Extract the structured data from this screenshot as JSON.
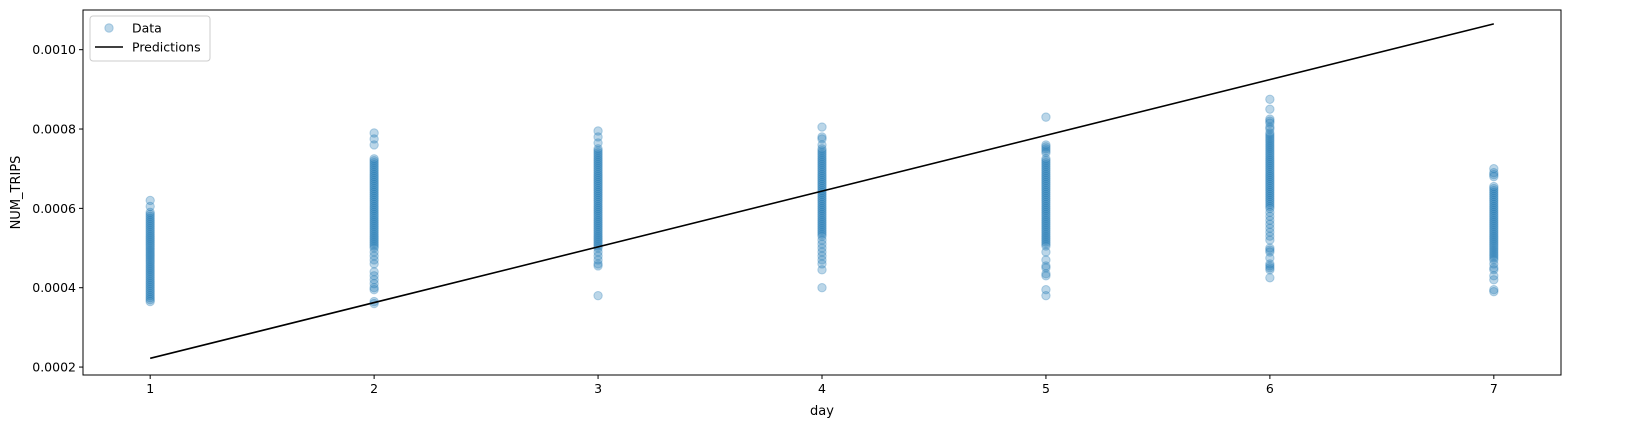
{
  "chart_data": {
    "type": "scatter",
    "xlabel": "day",
    "ylabel": "NUM_TRIPS",
    "xlim": [
      0.7,
      7.3
    ],
    "ylim": [
      0.00018,
      0.0011
    ],
    "xticks": [
      "1",
      "2",
      "3",
      "4",
      "5",
      "6",
      "7"
    ],
    "yticks": [
      "0.0002",
      "0.0004",
      "0.0006",
      "0.0008",
      "0.0010"
    ],
    "grid": false,
    "legend": {
      "placement": "top-left",
      "entries": [
        {
          "label": "Data",
          "marker": "circle",
          "color": "#1f77b4"
        },
        {
          "label": "Predictions",
          "marker": "line",
          "color": "#000000"
        }
      ]
    },
    "series": [
      {
        "name": "Data",
        "kind": "scatter",
        "color": "#1f77b4",
        "alpha": 0.3,
        "points_by_day": [
          {
            "x": 1,
            "y": [
              0.00062,
              0.000605,
              0.00059,
              0.000585,
              0.00058,
              0.000575,
              0.00057,
              0.000565,
              0.00056,
              0.000555,
              0.00055,
              0.000545,
              0.00054,
              0.000535,
              0.00053,
              0.000525,
              0.00052,
              0.000515,
              0.00051,
              0.000505,
              0.0005,
              0.000495,
              0.00049,
              0.000485,
              0.00048,
              0.000475,
              0.00047,
              0.000465,
              0.00046,
              0.000455,
              0.00045,
              0.000445,
              0.00044,
              0.000435,
              0.00043,
              0.000425,
              0.00042,
              0.000415,
              0.00041,
              0.000405,
              0.0004,
              0.000395,
              0.00039,
              0.000385,
              0.00038,
              0.000375,
              0.00037,
              0.000365
            ]
          },
          {
            "x": 2,
            "y": [
              0.00079,
              0.000775,
              0.00076,
              0.000725,
              0.00072,
              0.000715,
              0.00071,
              0.000705,
              0.0007,
              0.000695,
              0.00069,
              0.000685,
              0.00068,
              0.000675,
              0.00067,
              0.000665,
              0.00066,
              0.000655,
              0.00065,
              0.000645,
              0.00064,
              0.000635,
              0.00063,
              0.000625,
              0.00062,
              0.000615,
              0.00061,
              0.000605,
              0.0006,
              0.000595,
              0.00059,
              0.000585,
              0.00058,
              0.000575,
              0.00057,
              0.000565,
              0.00056,
              0.000555,
              0.00055,
              0.000545,
              0.00054,
              0.000535,
              0.00053,
              0.000525,
              0.00052,
              0.000515,
              0.00051,
              0.000505,
              0.0005,
              0.00049,
              0.00048,
              0.00047,
              0.00046,
              0.00044,
              0.00043,
              0.00042,
              0.00041,
              0.0004,
              0.000395,
              0.000365,
              0.00036
            ]
          },
          {
            "x": 3,
            "y": [
              0.000795,
              0.00078,
              0.000765,
              0.00075,
              0.000745,
              0.00074,
              0.000735,
              0.00073,
              0.000725,
              0.00072,
              0.000715,
              0.00071,
              0.000705,
              0.0007,
              0.000695,
              0.00069,
              0.000685,
              0.00068,
              0.000675,
              0.00067,
              0.000665,
              0.00066,
              0.000655,
              0.00065,
              0.000645,
              0.00064,
              0.000635,
              0.00063,
              0.000625,
              0.00062,
              0.000615,
              0.00061,
              0.000605,
              0.0006,
              0.000595,
              0.00059,
              0.000585,
              0.00058,
              0.000575,
              0.00057,
              0.000565,
              0.00056,
              0.000555,
              0.00055,
              0.000545,
              0.00054,
              0.000535,
              0.00053,
              0.000525,
              0.00052,
              0.000515,
              0.00051,
              0.000505,
              0.0005,
              0.00049,
              0.00048,
              0.00047,
              0.00046,
              0.000455,
              0.00038
            ]
          },
          {
            "x": 4,
            "y": [
              0.000805,
              0.00078,
              0.000775,
              0.00076,
              0.00075,
              0.000745,
              0.00074,
              0.000735,
              0.00073,
              0.000725,
              0.00072,
              0.000715,
              0.00071,
              0.000705,
              0.0007,
              0.000695,
              0.00069,
              0.000685,
              0.00068,
              0.000675,
              0.00067,
              0.000665,
              0.00066,
              0.000655,
              0.00065,
              0.000645,
              0.00064,
              0.000635,
              0.00063,
              0.000625,
              0.00062,
              0.000615,
              0.00061,
              0.000605,
              0.0006,
              0.000595,
              0.00059,
              0.000585,
              0.00058,
              0.000575,
              0.00057,
              0.000565,
              0.00056,
              0.000555,
              0.00055,
              0.000545,
              0.00054,
              0.000535,
              0.00053,
              0.00052,
              0.00051,
              0.0005,
              0.00049,
              0.00048,
              0.00047,
              0.00046,
              0.000445,
              0.0004
            ]
          },
          {
            "x": 5,
            "y": [
              0.00083,
              0.00076,
              0.000755,
              0.00075,
              0.000745,
              0.00074,
              0.000725,
              0.00072,
              0.000715,
              0.00071,
              0.000705,
              0.0007,
              0.000695,
              0.00069,
              0.000685,
              0.00068,
              0.000675,
              0.00067,
              0.000665,
              0.00066,
              0.000655,
              0.00065,
              0.000645,
              0.00064,
              0.000635,
              0.00063,
              0.000625,
              0.00062,
              0.000615,
              0.00061,
              0.000605,
              0.0006,
              0.000595,
              0.00059,
              0.000585,
              0.00058,
              0.000575,
              0.00057,
              0.000565,
              0.00056,
              0.000555,
              0.00055,
              0.000545,
              0.00054,
              0.000535,
              0.00053,
              0.000525,
              0.00052,
              0.000515,
              0.00051,
              0.000505,
              0.00049,
              0.00047,
              0.000455,
              0.00045,
              0.000435,
              0.00043,
              0.000395,
              0.00038
            ]
          },
          {
            "x": 6,
            "y": [
              0.000875,
              0.00085,
              0.000825,
              0.00082,
              0.000815,
              0.000805,
              0.0008,
              0.00079,
              0.000785,
              0.00078,
              0.000775,
              0.00077,
              0.000765,
              0.00076,
              0.000755,
              0.00075,
              0.000745,
              0.00074,
              0.000735,
              0.00073,
              0.000725,
              0.00072,
              0.000715,
              0.00071,
              0.000705,
              0.0007,
              0.000695,
              0.00069,
              0.000685,
              0.00068,
              0.000675,
              0.00067,
              0.000665,
              0.00066,
              0.000655,
              0.00065,
              0.000645,
              0.00064,
              0.000635,
              0.00063,
              0.000625,
              0.00062,
              0.000615,
              0.00061,
              0.000605,
              0.0006,
              0.00059,
              0.00058,
              0.00057,
              0.00056,
              0.00055,
              0.00054,
              0.00053,
              0.00052,
              0.0005,
              0.000495,
              0.00049,
              0.000475,
              0.00046,
              0.000455,
              0.00045,
              0.000445,
              0.000425
            ]
          },
          {
            "x": 7,
            "y": [
              0.0007,
              0.00069,
              0.000685,
              0.00068,
              0.000655,
              0.00065,
              0.000645,
              0.00064,
              0.000635,
              0.00063,
              0.000625,
              0.00062,
              0.000615,
              0.00061,
              0.000605,
              0.0006,
              0.000595,
              0.00059,
              0.000585,
              0.00058,
              0.000575,
              0.00057,
              0.000565,
              0.00056,
              0.000555,
              0.00055,
              0.000545,
              0.00054,
              0.000535,
              0.00053,
              0.000525,
              0.00052,
              0.000515,
              0.00051,
              0.000505,
              0.0005,
              0.000495,
              0.00049,
              0.000485,
              0.00048,
              0.000475,
              0.00047,
              0.00046,
              0.00045,
              0.000445,
              0.00043,
              0.00042,
              0.000395,
              0.00039
            ]
          }
        ]
      },
      {
        "name": "Predictions",
        "kind": "line",
        "color": "#000000",
        "x": [
          1,
          7
        ],
        "y": [
          0.000222,
          0.001065
        ]
      }
    ]
  }
}
